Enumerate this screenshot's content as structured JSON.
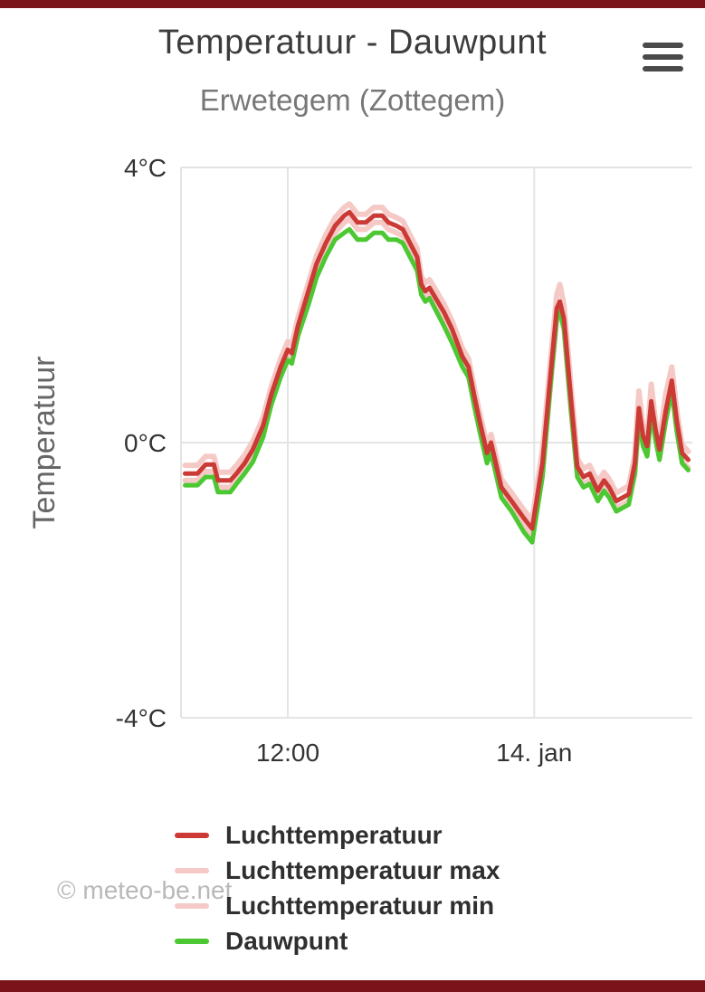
{
  "header": {
    "title": "Temperatuur - Dauwpunt",
    "subtitle": "Erwetegem (Zottegem)"
  },
  "watermark": "© meteo-be.net",
  "colors": {
    "statusbar": "#7b141a",
    "grid": "#e4e4e4",
    "tick_text": "#333333",
    "axis_title_text": "#666666",
    "title_text": "#3c3c3c",
    "subtitle_text": "#777777",
    "legend_text": "#2f2f2f",
    "watermark_text": "#b9b9b9",
    "menu_icon": "#4a4a4a"
  },
  "chart_data": {
    "type": "line",
    "title": "Temperatuur - Dauwpunt",
    "subtitle": "Erwetegem (Zottegem)",
    "ylabel": "Temperatuur",
    "ylim": [
      -4,
      4
    ],
    "grid": true,
    "legend_position": "bottom-left",
    "x_unit": "hour-of-day counted from 13 jan 00:00 (24 = 14. jan 00:00)",
    "x_domain": [
      6.8,
      31.7
    ],
    "x_ticks": [
      {
        "value": 12,
        "label": "12:00"
      },
      {
        "value": 24,
        "label": "14. jan"
      }
    ],
    "y_ticks": [
      {
        "value": 4,
        "label": "4°C"
      },
      {
        "value": 0,
        "label": "0°C"
      },
      {
        "value": -4,
        "label": "-4°C"
      }
    ],
    "x": [
      7.0,
      7.6,
      8.0,
      8.4,
      8.6,
      9.2,
      9.5,
      9.9,
      10.3,
      10.8,
      11.2,
      11.65,
      12.0,
      12.2,
      12.5,
      13.0,
      13.4,
      13.85,
      14.3,
      14.75,
      15.0,
      15.4,
      15.8,
      16.2,
      16.6,
      16.9,
      17.3,
      17.6,
      18.3,
      18.5,
      18.7,
      18.9,
      19.6,
      20.0,
      20.5,
      20.8,
      21.1,
      21.35,
      21.7,
      21.9,
      22.4,
      22.9,
      23.5,
      23.9,
      24.4,
      24.8,
      25.1,
      25.25,
      25.45,
      25.8,
      26.1,
      26.4,
      26.7,
      27.1,
      27.4,
      27.65,
      28.0,
      28.3,
      28.6,
      28.9,
      29.1,
      29.3,
      29.5,
      29.7,
      29.9,
      30.1,
      30.4,
      30.7,
      30.95,
      31.2,
      31.5
    ],
    "series": [
      {
        "name": "Luchttemperatuur",
        "color": "#cb3a34",
        "width": 5,
        "values": [
          -0.45,
          -0.45,
          -0.32,
          -0.32,
          -0.55,
          -0.55,
          -0.45,
          -0.3,
          -0.1,
          0.25,
          0.7,
          1.1,
          1.35,
          1.3,
          1.7,
          2.2,
          2.6,
          2.9,
          3.15,
          3.3,
          3.35,
          3.2,
          3.2,
          3.3,
          3.3,
          3.2,
          3.15,
          3.1,
          2.7,
          2.3,
          2.2,
          2.25,
          1.9,
          1.65,
          1.25,
          1.1,
          0.65,
          0.3,
          -0.15,
          0.0,
          -0.65,
          -0.85,
          -1.1,
          -1.25,
          -0.3,
          1.0,
          1.95,
          2.05,
          1.8,
          0.6,
          -0.35,
          -0.5,
          -0.45,
          -0.7,
          -0.55,
          -0.65,
          -0.85,
          -0.8,
          -0.75,
          -0.3,
          0.5,
          0.1,
          -0.05,
          0.6,
          0.2,
          -0.1,
          0.45,
          0.9,
          0.3,
          -0.15,
          -0.25
        ]
      },
      {
        "name": "Luchttemperatuur max",
        "color": "#f5c9c6",
        "width": 6,
        "values": [
          -0.33,
          -0.33,
          -0.2,
          -0.2,
          -0.43,
          -0.43,
          -0.33,
          -0.18,
          0.02,
          0.37,
          0.82,
          1.22,
          1.47,
          1.42,
          1.82,
          2.32,
          2.72,
          3.02,
          3.27,
          3.42,
          3.47,
          3.32,
          3.32,
          3.42,
          3.42,
          3.32,
          3.27,
          3.22,
          2.82,
          2.42,
          2.32,
          2.37,
          2.02,
          1.77,
          1.37,
          1.22,
          0.77,
          0.42,
          -0.03,
          0.12,
          -0.53,
          -0.73,
          -0.98,
          -1.13,
          -0.1,
          1.2,
          2.15,
          2.3,
          2.0,
          0.8,
          -0.23,
          -0.38,
          -0.33,
          -0.58,
          -0.43,
          -0.53,
          -0.73,
          -0.68,
          -0.63,
          -0.18,
          0.75,
          0.22,
          0.07,
          0.85,
          0.32,
          0.02,
          0.7,
          1.1,
          0.45,
          -0.03,
          -0.13
        ]
      },
      {
        "name": "Luchttemperatuur min",
        "color": "#f5c9c6",
        "width": 6,
        "values": [
          -0.55,
          -0.55,
          -0.42,
          -0.42,
          -0.65,
          -0.65,
          -0.55,
          -0.4,
          -0.2,
          0.15,
          0.6,
          1.0,
          1.25,
          1.2,
          1.6,
          2.1,
          2.5,
          2.8,
          3.05,
          3.2,
          3.25,
          3.1,
          3.1,
          3.2,
          3.2,
          3.1,
          3.05,
          3.0,
          2.6,
          2.2,
          2.1,
          2.15,
          1.8,
          1.55,
          1.15,
          1.0,
          0.55,
          0.2,
          -0.25,
          -0.1,
          -0.75,
          -0.95,
          -1.2,
          -1.38,
          -0.45,
          0.85,
          1.8,
          1.92,
          1.65,
          0.45,
          -0.45,
          -0.6,
          -0.55,
          -0.8,
          -0.65,
          -0.75,
          -0.95,
          -0.9,
          -0.85,
          -0.45,
          0.35,
          -0.02,
          -0.17,
          0.45,
          0.08,
          -0.22,
          0.33,
          0.78,
          0.18,
          -0.27,
          -0.37
        ]
      },
      {
        "name": "Dauwpunt",
        "color": "#4bc832",
        "width": 5,
        "values": [
          -0.62,
          -0.62,
          -0.5,
          -0.5,
          -0.72,
          -0.72,
          -0.6,
          -0.45,
          -0.28,
          0.08,
          0.55,
          0.95,
          1.2,
          1.15,
          1.55,
          2.0,
          2.4,
          2.7,
          2.95,
          3.05,
          3.1,
          2.95,
          2.95,
          3.05,
          3.05,
          2.95,
          2.95,
          2.9,
          2.5,
          2.15,
          2.05,
          2.1,
          1.7,
          1.45,
          1.1,
          0.95,
          0.5,
          0.15,
          -0.3,
          -0.15,
          -0.8,
          -1.0,
          -1.3,
          -1.45,
          -0.5,
          0.85,
          1.8,
          1.9,
          1.65,
          0.45,
          -0.5,
          -0.65,
          -0.6,
          -0.85,
          -0.7,
          -0.8,
          -1.0,
          -0.95,
          -0.9,
          -0.45,
          0.35,
          -0.05,
          -0.2,
          0.45,
          0.05,
          -0.25,
          0.3,
          0.75,
          0.15,
          -0.3,
          -0.4
        ]
      }
    ],
    "draw_order": [
      1,
      2,
      3,
      0
    ]
  }
}
